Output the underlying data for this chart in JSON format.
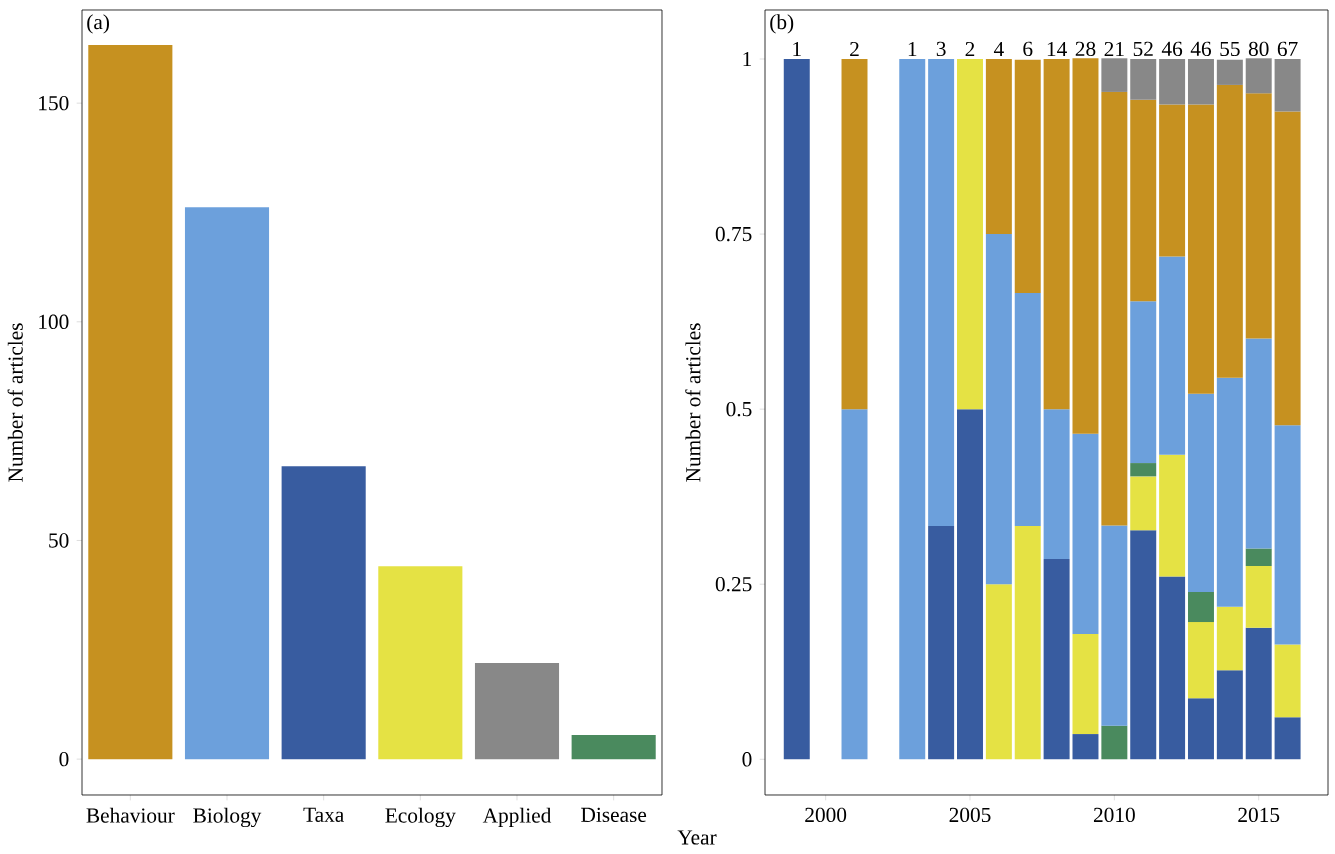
{
  "chart_data": [
    {
      "type": "bar",
      "title": "(a)",
      "ylabel": "Number of articles",
      "categories": [
        "Behaviour",
        "Biology",
        "Taxa",
        "Ecology",
        "Applied",
        "Disease"
      ],
      "values": [
        163.3,
        126.2,
        67,
        44.1,
        22,
        5.5
      ],
      "colors": [
        "#c69120",
        "#6ca0dc",
        "#385ca0",
        "#e5e244",
        "#888888",
        "#4a8a5e"
      ],
      "ylim": [
        -8.2,
        171.3
      ],
      "yticks": [
        0,
        50,
        100,
        150
      ]
    },
    {
      "type": "bar",
      "stacked": true,
      "title": "(b)",
      "xlabel": "Year",
      "ylabel": "Number of articles",
      "x": [
        1999,
        2001,
        2003,
        2004,
        2005,
        2006,
        2007,
        2008,
        2009,
        2010,
        2011,
        2012,
        2013,
        2014,
        2015,
        2016
      ],
      "series": [
        {
          "color": "#385ca0",
          "values": [
            1,
            null,
            null,
            0.333,
            0.5,
            null,
            null,
            0.286,
            0.036,
            null,
            0.327,
            0.261,
            0.087,
            0.127,
            0.188,
            0.06
          ]
        },
        {
          "color": "#e5e244",
          "values": [
            null,
            null,
            null,
            null,
            0.5,
            0.25,
            0.333,
            null,
            0.143,
            null,
            0.077,
            0.174,
            0.109,
            0.091,
            0.088,
            0.104
          ]
        },
        {
          "color": "#4a8a5e",
          "values": [
            null,
            null,
            null,
            null,
            null,
            null,
            null,
            null,
            null,
            0.048,
            0.019,
            null,
            0.043,
            null,
            0.025,
            null
          ]
        },
        {
          "color": "#6ca0dc",
          "values": [
            null,
            0.5,
            1,
            0.667,
            null,
            0.5,
            0.333,
            0.214,
            0.286,
            0.286,
            0.231,
            0.283,
            0.283,
            0.327,
            0.3,
            0.313
          ]
        },
        {
          "color": "#c69120",
          "values": [
            null,
            0.5,
            null,
            null,
            null,
            0.25,
            0.333,
            0.5,
            0.536,
            0.619,
            0.288,
            0.217,
            0.413,
            0.418,
            0.35,
            0.448
          ]
        },
        {
          "color": "#888888",
          "values": [
            null,
            null,
            null,
            null,
            null,
            null,
            null,
            null,
            null,
            0.048,
            0.058,
            0.065,
            0.065,
            0.036,
            0.05,
            0.075
          ]
        }
      ],
      "xlim": [
        1997.9,
        2017.4
      ],
      "xticks": [
        2000,
        2005,
        2010,
        2015
      ],
      "ylim": [
        -0.051,
        1.07
      ],
      "yticks": [
        0,
        0.25,
        0.5,
        0.75,
        1
      ],
      "annotations": [
        {
          "text": "1",
          "x": 1999,
          "y": 1
        },
        {
          "text": "2",
          "x": 2001,
          "y": 1
        },
        {
          "text": "1",
          "x": 2003,
          "y": 1
        },
        {
          "text": "3",
          "x": 2004,
          "y": 1
        },
        {
          "text": "2",
          "x": 2005,
          "y": 1
        },
        {
          "text": "4",
          "x": 2006,
          "y": 1
        },
        {
          "text": "6",
          "x": 2007,
          "y": 1
        },
        {
          "text": "14",
          "x": 2008,
          "y": 1
        },
        {
          "text": "28",
          "x": 2009,
          "y": 1
        },
        {
          "text": "21",
          "x": 2010,
          "y": 1
        },
        {
          "text": "52",
          "x": 2011,
          "y": 1
        },
        {
          "text": "46",
          "x": 2012,
          "y": 1
        },
        {
          "text": "46",
          "x": 2013,
          "y": 1
        },
        {
          "text": "55",
          "x": 2014,
          "y": 1
        },
        {
          "text": "80",
          "x": 2015,
          "y": 1
        },
        {
          "text": "67",
          "x": 2016,
          "y": 1
        }
      ]
    }
  ]
}
